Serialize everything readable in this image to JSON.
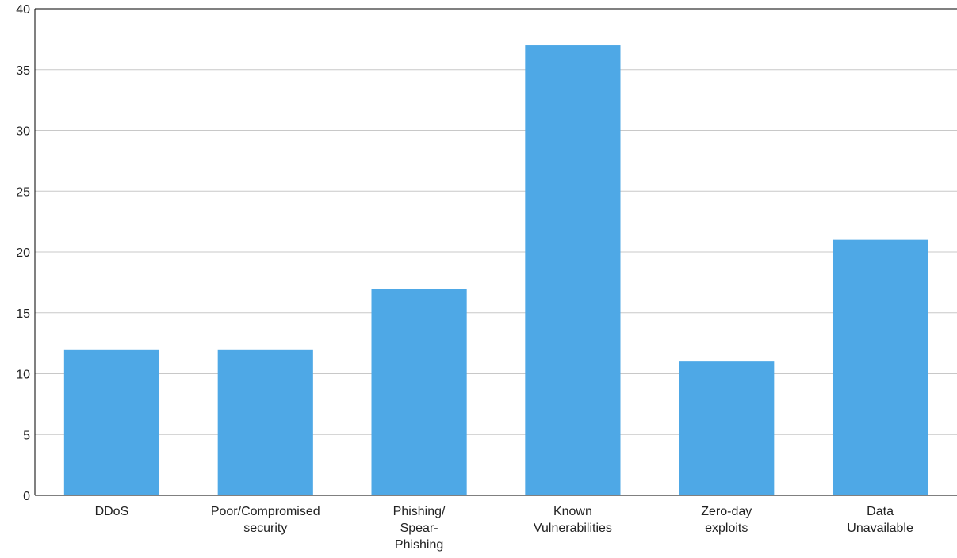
{
  "chart_data": {
    "type": "bar",
    "title": "",
    "xlabel": "",
    "ylabel": "",
    "categories": [
      [
        "DDoS"
      ],
      [
        "Poor/Compromised",
        "security"
      ],
      [
        "Phishing/",
        "Spear-",
        "Phishing"
      ],
      [
        "Known",
        "Vulnerabilities"
      ],
      [
        "Zero-day",
        "exploits"
      ],
      [
        "Data",
        "Unavailable"
      ]
    ],
    "values": [
      12,
      12,
      17,
      37,
      11,
      21
    ],
    "ylim": [
      0,
      40
    ],
    "yticks": [
      0,
      5,
      10,
      15,
      20,
      25,
      30,
      35,
      40
    ],
    "grid": true,
    "legend": "none",
    "colors": {
      "bar": "#4ea8e6",
      "grid": "#c8c8c8",
      "axis": "#000000"
    }
  }
}
